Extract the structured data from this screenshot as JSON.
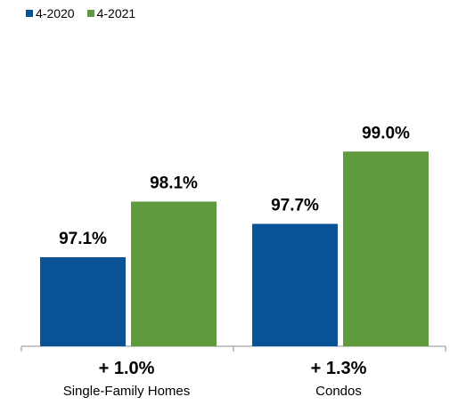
{
  "chart_data": {
    "type": "bar",
    "categories": [
      "Single-Family Homes",
      "Condos"
    ],
    "category_changes": [
      "+ 1.0%",
      "+ 1.3%"
    ],
    "series": [
      {
        "name": "4-2020",
        "color": "#0a5298",
        "values": [
          97.1,
          97.7
        ],
        "labels": [
          "97.1%",
          "97.7%"
        ]
      },
      {
        "name": "4-2021",
        "color": "#5f9b3d",
        "values": [
          98.1,
          99.0
        ],
        "labels": [
          "98.1%",
          "99.0%"
        ]
      }
    ],
    "legend_position": "top-left",
    "grid": false
  }
}
